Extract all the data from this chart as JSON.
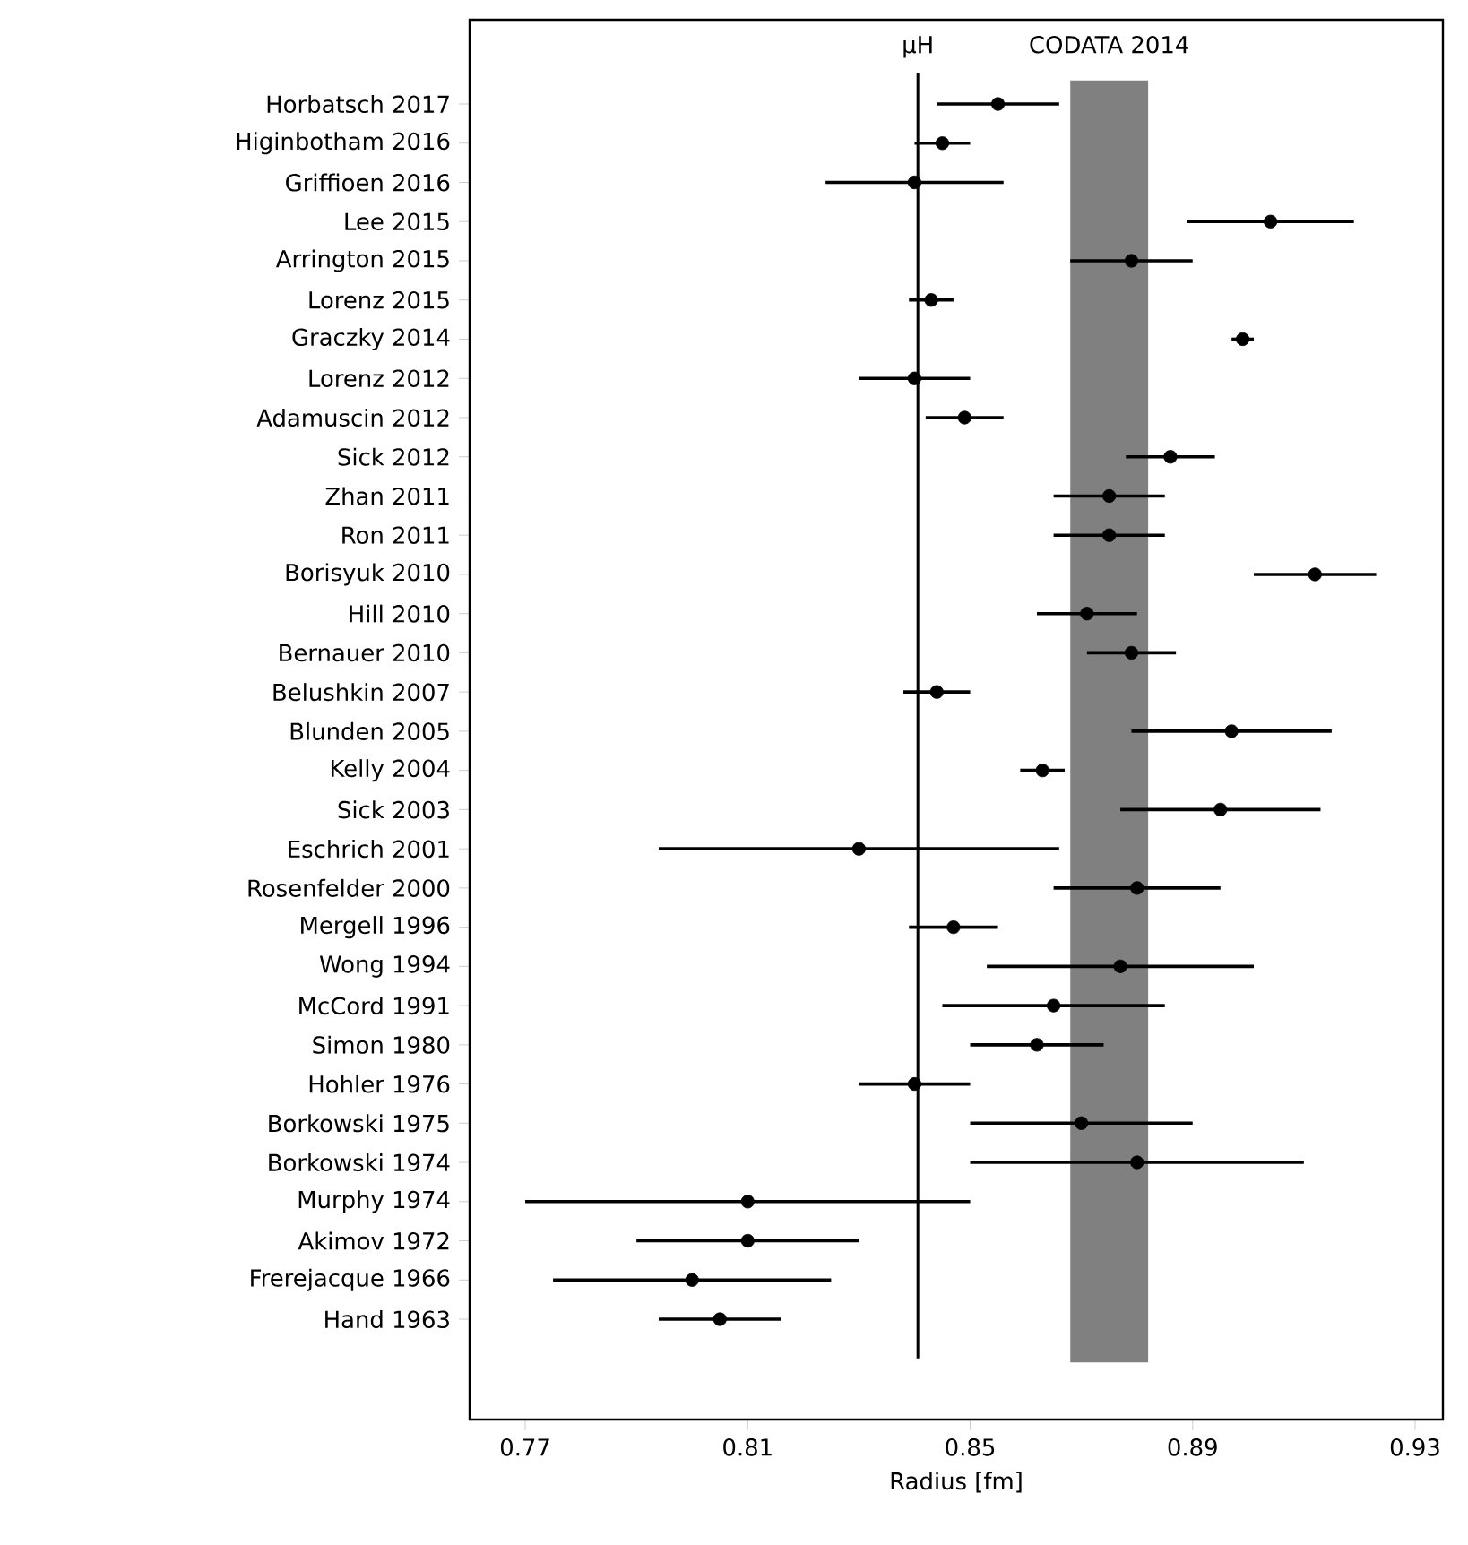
{
  "chart_data": {
    "type": "scatter",
    "orientation": "horizontal",
    "xlabel": "Radius [fm]",
    "categories": [
      "Horbatsch 2017",
      "Higinbotham 2016",
      "Griffioen 2016",
      "Lee 2015",
      "Arrington 2015",
      "Lorenz 2015",
      "Graczky 2014",
      "Lorenz 2012",
      "Adamuscin 2012",
      "Sick 2012",
      "Zhan 2011",
      "Ron 2011",
      "Borisyuk 2010",
      "Hill 2010",
      "Bernauer 2010",
      "Belushkin 2007",
      "Blunden 2005",
      "Kelly 2004",
      "Sick 2003",
      "Eschrich 2001",
      "Rosenfelder 2000",
      "Mergell 1996",
      "Wong 1994",
      "McCord 1991",
      "Simon 1980",
      "Hohler 1976",
      "Borkowski 1975",
      "Borkowski 1974",
      "Murphy 1974",
      "Akimov 1972",
      "Frerejacque 1966",
      "Hand 1963"
    ],
    "values": [
      0.855,
      0.845,
      0.84,
      0.904,
      0.879,
      0.843,
      0.899,
      0.84,
      0.849,
      0.886,
      0.875,
      0.875,
      0.912,
      0.871,
      0.879,
      0.844,
      0.897,
      0.863,
      0.895,
      0.83,
      0.88,
      0.847,
      0.877,
      0.865,
      0.862,
      0.84,
      0.87,
      0.88,
      0.81,
      0.81,
      0.8,
      0.805
    ],
    "errors": [
      0.011,
      0.005,
      0.016,
      0.015,
      0.011,
      0.004,
      0.002,
      0.01,
      0.007,
      0.008,
      0.01,
      0.01,
      0.011,
      0.009,
      0.008,
      0.006,
      0.018,
      0.004,
      0.018,
      0.036,
      0.015,
      0.008,
      0.024,
      0.02,
      0.012,
      0.01,
      0.02,
      0.03,
      0.04,
      0.02,
      0.025,
      0.011
    ],
    "color": "#000000",
    "xlim": [
      0.76,
      0.935
    ],
    "xticks": [
      0.77,
      0.81,
      0.85,
      0.89,
      0.93
    ],
    "ref_lines": [
      {
        "axis": "x",
        "value": 0.8406,
        "label": "μH",
        "color": "#000000"
      }
    ],
    "bands": [
      {
        "axis": "x",
        "from": 0.868,
        "to": 0.882,
        "label": "CODATA 2014",
        "color": "#808080"
      }
    ]
  }
}
